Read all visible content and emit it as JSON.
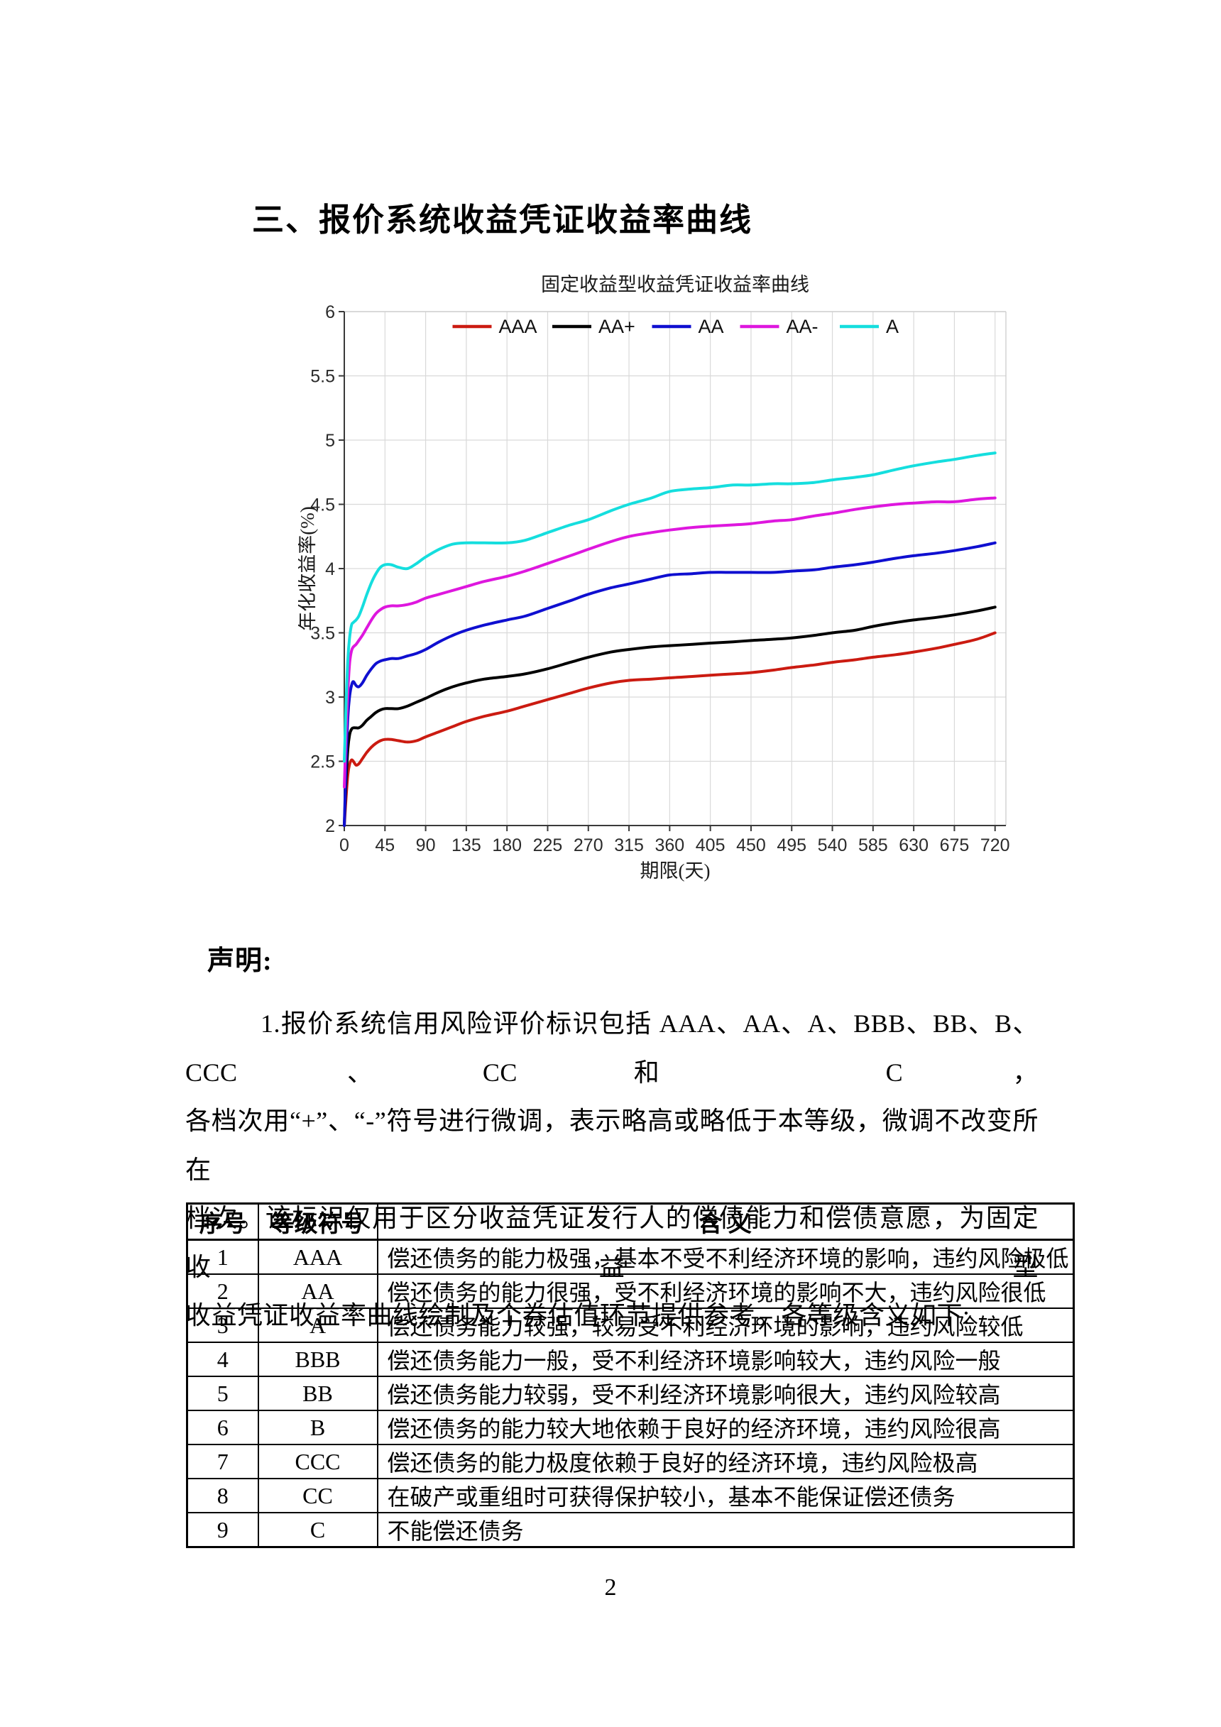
{
  "heading": "三、报价系统收益凭证收益率曲线",
  "statement": {
    "title": "声明:",
    "lines": [
      "1.报价系统信用风险评价标识包括 AAA、AA、A、BBB、BB、B、CCC、CC 和 C，",
      "各档次用“+”、“-”符号进行微调，表示略高或略低于本等级，微调不改变所在",
      "档次。该标识仅用于区分收益凭证发行人的偿债能力和偿债意愿，为固定收益型",
      "收益凭证收益率曲线绘制及个券估值环节提供参考。各等级含义如下:"
    ]
  },
  "table": {
    "headers": [
      "序号",
      "等级符号",
      "含  义"
    ],
    "rows": [
      [
        "1",
        "AAA",
        "偿还债务的能力极强，基本不受不利经济环境的影响，违约风险极低"
      ],
      [
        "2",
        "AA",
        "偿还债务的能力很强，受不利经济环境的影响不大，违约风险很低"
      ],
      [
        "3",
        "A",
        "偿还债务能力较强，较易受不利经济环境的影响，违约风险较低"
      ],
      [
        "4",
        "BBB",
        "偿还债务能力一般，受不利经济环境影响较大，违约风险一般"
      ],
      [
        "5",
        "BB",
        "偿还债务能力较弱，受不利经济环境影响很大，违约风险较高"
      ],
      [
        "6",
        "B",
        "偿还债务的能力较大地依赖于良好的经济环境，违约风险很高"
      ],
      [
        "7",
        "CCC",
        "偿还债务的能力极度依赖于良好的经济环境，违约风险极高"
      ],
      [
        "8",
        "CC",
        "在破产或重组时可获得保护较小，基本不能保证偿还债务"
      ],
      [
        "9",
        "C",
        "不能偿还债务"
      ]
    ]
  },
  "page_number": "2",
  "chart_data": {
    "type": "line",
    "title": "固定收益型收益凭证收益率曲线",
    "xlabel": "期限(天)",
    "ylabel": "年化收益率(%)",
    "xlim": [
      0,
      732
    ],
    "ylim": [
      2,
      6
    ],
    "xticks": [
      0,
      45,
      90,
      135,
      180,
      225,
      270,
      315,
      360,
      405,
      450,
      495,
      540,
      585,
      630,
      675,
      720
    ],
    "yticks": [
      2,
      2.5,
      3,
      3.5,
      4,
      4.5,
      5,
      5.5,
      6
    ],
    "grid": true,
    "legend_position": "top-inside",
    "colors": {
      "grid": "#d9d9d9",
      "axis": "#3a3a3a",
      "box_light": "#cfcfcf"
    },
    "series": [
      {
        "name": "AAA",
        "color": "#cb1b11",
        "points": [
          [
            0,
            2.0
          ],
          [
            2,
            2.22
          ],
          [
            4,
            2.4
          ],
          [
            6,
            2.48
          ],
          [
            8,
            2.51
          ],
          [
            10,
            2.5
          ],
          [
            13,
            2.47
          ],
          [
            16,
            2.48
          ],
          [
            20,
            2.52
          ],
          [
            25,
            2.57
          ],
          [
            30,
            2.61
          ],
          [
            35,
            2.64
          ],
          [
            40,
            2.66
          ],
          [
            45,
            2.67
          ],
          [
            52,
            2.67
          ],
          [
            60,
            2.66
          ],
          [
            70,
            2.65
          ],
          [
            80,
            2.66
          ],
          [
            90,
            2.69
          ],
          [
            105,
            2.73
          ],
          [
            120,
            2.77
          ],
          [
            135,
            2.81
          ],
          [
            155,
            2.85
          ],
          [
            180,
            2.89
          ],
          [
            200,
            2.93
          ],
          [
            225,
            2.98
          ],
          [
            250,
            3.03
          ],
          [
            270,
            3.07
          ],
          [
            295,
            3.11
          ],
          [
            315,
            3.13
          ],
          [
            340,
            3.14
          ],
          [
            360,
            3.15
          ],
          [
            385,
            3.16
          ],
          [
            405,
            3.17
          ],
          [
            430,
            3.18
          ],
          [
            450,
            3.19
          ],
          [
            475,
            3.21
          ],
          [
            495,
            3.23
          ],
          [
            520,
            3.25
          ],
          [
            540,
            3.27
          ],
          [
            565,
            3.29
          ],
          [
            585,
            3.31
          ],
          [
            610,
            3.33
          ],
          [
            630,
            3.35
          ],
          [
            655,
            3.38
          ],
          [
            675,
            3.41
          ],
          [
            700,
            3.45
          ],
          [
            720,
            3.5
          ]
        ]
      },
      {
        "name": "AA+",
        "color": "#000000",
        "points": [
          [
            0,
            2.0
          ],
          [
            2,
            2.35
          ],
          [
            4,
            2.6
          ],
          [
            6,
            2.71
          ],
          [
            8,
            2.75
          ],
          [
            10,
            2.76
          ],
          [
            13,
            2.76
          ],
          [
            16,
            2.76
          ],
          [
            20,
            2.78
          ],
          [
            25,
            2.82
          ],
          [
            30,
            2.85
          ],
          [
            35,
            2.88
          ],
          [
            40,
            2.9
          ],
          [
            45,
            2.91
          ],
          [
            52,
            2.91
          ],
          [
            60,
            2.91
          ],
          [
            70,
            2.93
          ],
          [
            80,
            2.96
          ],
          [
            90,
            2.99
          ],
          [
            105,
            3.04
          ],
          [
            120,
            3.08
          ],
          [
            135,
            3.11
          ],
          [
            155,
            3.14
          ],
          [
            180,
            3.16
          ],
          [
            200,
            3.18
          ],
          [
            225,
            3.22
          ],
          [
            250,
            3.27
          ],
          [
            270,
            3.31
          ],
          [
            295,
            3.35
          ],
          [
            315,
            3.37
          ],
          [
            340,
            3.39
          ],
          [
            360,
            3.4
          ],
          [
            385,
            3.41
          ],
          [
            405,
            3.42
          ],
          [
            430,
            3.43
          ],
          [
            450,
            3.44
          ],
          [
            475,
            3.45
          ],
          [
            495,
            3.46
          ],
          [
            520,
            3.48
          ],
          [
            540,
            3.5
          ],
          [
            565,
            3.52
          ],
          [
            585,
            3.55
          ],
          [
            610,
            3.58
          ],
          [
            630,
            3.6
          ],
          [
            655,
            3.62
          ],
          [
            675,
            3.64
          ],
          [
            700,
            3.67
          ],
          [
            720,
            3.7
          ]
        ]
      },
      {
        "name": "AA",
        "color": "#0f0fd0",
        "points": [
          [
            0,
            2.0
          ],
          [
            2,
            2.5
          ],
          [
            4,
            2.85
          ],
          [
            6,
            3.01
          ],
          [
            8,
            3.09
          ],
          [
            10,
            3.12
          ],
          [
            13,
            3.09
          ],
          [
            16,
            3.08
          ],
          [
            20,
            3.11
          ],
          [
            25,
            3.17
          ],
          [
            30,
            3.22
          ],
          [
            35,
            3.26
          ],
          [
            40,
            3.28
          ],
          [
            45,
            3.29
          ],
          [
            52,
            3.3
          ],
          [
            60,
            3.3
          ],
          [
            70,
            3.32
          ],
          [
            80,
            3.34
          ],
          [
            90,
            3.37
          ],
          [
            105,
            3.43
          ],
          [
            120,
            3.48
          ],
          [
            135,
            3.52
          ],
          [
            155,
            3.56
          ],
          [
            180,
            3.6
          ],
          [
            200,
            3.63
          ],
          [
            225,
            3.69
          ],
          [
            250,
            3.75
          ],
          [
            270,
            3.8
          ],
          [
            295,
            3.85
          ],
          [
            315,
            3.88
          ],
          [
            340,
            3.92
          ],
          [
            360,
            3.95
          ],
          [
            385,
            3.96
          ],
          [
            405,
            3.97
          ],
          [
            430,
            3.97
          ],
          [
            450,
            3.97
          ],
          [
            475,
            3.97
          ],
          [
            495,
            3.98
          ],
          [
            520,
            3.99
          ],
          [
            540,
            4.01
          ],
          [
            565,
            4.03
          ],
          [
            585,
            4.05
          ],
          [
            610,
            4.08
          ],
          [
            630,
            4.1
          ],
          [
            655,
            4.12
          ],
          [
            675,
            4.14
          ],
          [
            700,
            4.17
          ],
          [
            720,
            4.2
          ]
        ]
      },
      {
        "name": "AA-",
        "color": "#de17de",
        "points": [
          [
            0,
            2.3
          ],
          [
            2,
            2.72
          ],
          [
            4,
            3.05
          ],
          [
            6,
            3.27
          ],
          [
            8,
            3.36
          ],
          [
            10,
            3.39
          ],
          [
            13,
            3.41
          ],
          [
            16,
            3.44
          ],
          [
            20,
            3.48
          ],
          [
            25,
            3.54
          ],
          [
            30,
            3.6
          ],
          [
            35,
            3.65
          ],
          [
            40,
            3.68
          ],
          [
            45,
            3.7
          ],
          [
            52,
            3.71
          ],
          [
            60,
            3.71
          ],
          [
            70,
            3.72
          ],
          [
            80,
            3.74
          ],
          [
            90,
            3.77
          ],
          [
            105,
            3.8
          ],
          [
            120,
            3.83
          ],
          [
            135,
            3.86
          ],
          [
            155,
            3.9
          ],
          [
            180,
            3.94
          ],
          [
            200,
            3.98
          ],
          [
            225,
            4.04
          ],
          [
            250,
            4.1
          ],
          [
            270,
            4.15
          ],
          [
            295,
            4.21
          ],
          [
            315,
            4.25
          ],
          [
            340,
            4.28
          ],
          [
            360,
            4.3
          ],
          [
            385,
            4.32
          ],
          [
            405,
            4.33
          ],
          [
            430,
            4.34
          ],
          [
            450,
            4.35
          ],
          [
            475,
            4.37
          ],
          [
            495,
            4.38
          ],
          [
            520,
            4.41
          ],
          [
            540,
            4.43
          ],
          [
            565,
            4.46
          ],
          [
            585,
            4.48
          ],
          [
            610,
            4.5
          ],
          [
            630,
            4.51
          ],
          [
            655,
            4.52
          ],
          [
            675,
            4.52
          ],
          [
            700,
            4.54
          ],
          [
            720,
            4.55
          ]
        ]
      },
      {
        "name": "A",
        "color": "#15dede",
        "points": [
          [
            0,
            2.5
          ],
          [
            2,
            2.95
          ],
          [
            4,
            3.3
          ],
          [
            6,
            3.47
          ],
          [
            8,
            3.56
          ],
          [
            10,
            3.58
          ],
          [
            13,
            3.6
          ],
          [
            16,
            3.63
          ],
          [
            20,
            3.7
          ],
          [
            25,
            3.8
          ],
          [
            30,
            3.89
          ],
          [
            35,
            3.96
          ],
          [
            40,
            4.01
          ],
          [
            45,
            4.03
          ],
          [
            52,
            4.03
          ],
          [
            60,
            4.01
          ],
          [
            70,
            4.0
          ],
          [
            80,
            4.04
          ],
          [
            90,
            4.09
          ],
          [
            105,
            4.15
          ],
          [
            120,
            4.19
          ],
          [
            135,
            4.2
          ],
          [
            155,
            4.2
          ],
          [
            180,
            4.2
          ],
          [
            200,
            4.22
          ],
          [
            225,
            4.28
          ],
          [
            250,
            4.34
          ],
          [
            270,
            4.38
          ],
          [
            295,
            4.45
          ],
          [
            315,
            4.5
          ],
          [
            340,
            4.55
          ],
          [
            360,
            4.6
          ],
          [
            385,
            4.62
          ],
          [
            405,
            4.63
          ],
          [
            430,
            4.65
          ],
          [
            450,
            4.65
          ],
          [
            475,
            4.66
          ],
          [
            495,
            4.66
          ],
          [
            520,
            4.67
          ],
          [
            540,
            4.69
          ],
          [
            565,
            4.71
          ],
          [
            585,
            4.73
          ],
          [
            610,
            4.77
          ],
          [
            630,
            4.8
          ],
          [
            655,
            4.83
          ],
          [
            675,
            4.85
          ],
          [
            700,
            4.88
          ],
          [
            720,
            4.9
          ]
        ]
      }
    ]
  }
}
